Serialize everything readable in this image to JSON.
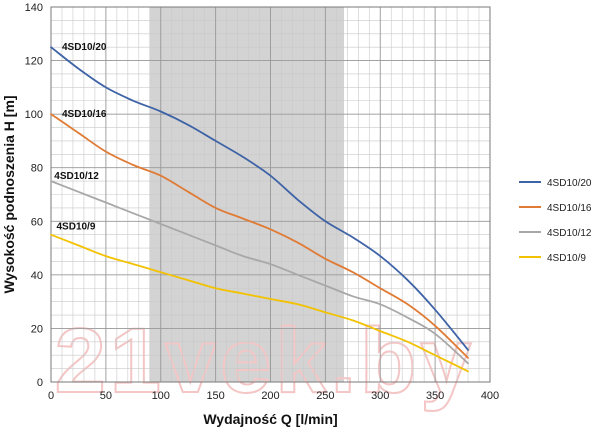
{
  "chart_data": {
    "type": "line",
    "title": "",
    "xlabel": "Wydajność Q [l/min]",
    "ylabel": "Wysokość podnoszenia H [m]",
    "xlim": [
      0,
      400
    ],
    "ylim": [
      0,
      140
    ],
    "x_ticks": [
      0,
      50,
      100,
      150,
      200,
      250,
      300,
      350,
      400
    ],
    "y_ticks": [
      0,
      20,
      40,
      60,
      80,
      100,
      120,
      140
    ],
    "x_minor_step": 10,
    "y_minor_step": 5,
    "grid": true,
    "legend_position": "right",
    "shaded_region_x": [
      90,
      267
    ],
    "shaded_color": "#d3d3d3",
    "watermark": "21vek.by",
    "series": [
      {
        "name": "4SD10/20",
        "color": "#3e63a6",
        "x": [
          0,
          25,
          50,
          75,
          100,
          125,
          150,
          175,
          200,
          225,
          250,
          275,
          300,
          325,
          350,
          380
        ],
        "y": [
          125,
          117,
          110,
          105,
          101,
          96,
          90,
          84,
          77,
          68,
          60,
          54,
          47,
          38,
          27,
          12
        ]
      },
      {
        "name": "4SD10/16",
        "color": "#e07b35",
        "x": [
          0,
          25,
          50,
          75,
          100,
          125,
          150,
          175,
          200,
          225,
          250,
          275,
          300,
          325,
          350,
          380
        ],
        "y": [
          100,
          93,
          86,
          81,
          77,
          71,
          65,
          61,
          57,
          52,
          46,
          41,
          35,
          29,
          21,
          9
        ]
      },
      {
        "name": "4SD10/12",
        "color": "#a8a8a8",
        "x": [
          0,
          25,
          50,
          75,
          100,
          125,
          150,
          175,
          200,
          225,
          250,
          275,
          300,
          325,
          350,
          380
        ],
        "y": [
          75,
          71,
          67,
          63,
          59,
          55,
          51,
          47,
          44,
          40,
          36,
          32,
          29,
          24,
          18,
          7
        ]
      },
      {
        "name": "4SD10/9",
        "color": "#f2c200",
        "x": [
          0,
          25,
          50,
          75,
          100,
          125,
          150,
          175,
          200,
          225,
          250,
          275,
          300,
          325,
          350,
          380
        ],
        "y": [
          55,
          51,
          47,
          44,
          41,
          38,
          35,
          33,
          31,
          29,
          26,
          23,
          19,
          15,
          10,
          4
        ]
      }
    ],
    "curve_labels": [
      {
        "text": "4SD10/20",
        "x": 10,
        "y": 125
      },
      {
        "text": "4SD10/16",
        "x": 10,
        "y": 100
      },
      {
        "text": "4SD10/12",
        "x": 3,
        "y": 77
      },
      {
        "text": "4SD10/9",
        "x": 5,
        "y": 58
      }
    ]
  }
}
